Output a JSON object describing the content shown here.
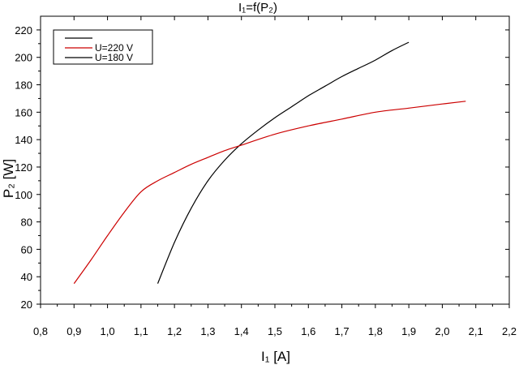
{
  "chart_data": {
    "type": "line",
    "title": "I₁=f(P₂)",
    "xlabel": "I₁ [A]",
    "ylabel": "P₂ [W]",
    "xlim": [
      0.8,
      2.2
    ],
    "ylim": [
      20,
      230
    ],
    "x_ticks": [
      0.8,
      0.9,
      1.0,
      1.1,
      1.2,
      1.3,
      1.4,
      1.5,
      1.6,
      1.7,
      1.8,
      1.9,
      2.0,
      2.1,
      2.2
    ],
    "x_tick_labels": [
      "0,8",
      "0,9",
      "1,0",
      "1,1",
      "1,2",
      "1,3",
      "1,4",
      "1,5",
      "1,6",
      "1,7",
      "1,8",
      "1,9",
      "2,0",
      "2,1",
      "2,2"
    ],
    "y_ticks": [
      20,
      40,
      60,
      80,
      100,
      120,
      140,
      160,
      180,
      200,
      220
    ],
    "y_tick_labels": [
      "20",
      "40",
      "60",
      "80",
      "100",
      "120",
      "140",
      "160",
      "180",
      "200",
      "220"
    ],
    "grid": false,
    "legend_position": "top-left",
    "series": [
      {
        "name": "",
        "color": "#000000",
        "x": [
          1.15,
          1.2,
          1.25,
          1.3,
          1.35,
          1.4,
          1.45,
          1.5,
          1.55,
          1.6,
          1.65,
          1.7,
          1.75,
          1.8,
          1.85,
          1.9
        ],
        "y": [
          35,
          65,
          90,
          110,
          125,
          137,
          147,
          156,
          164,
          172,
          179,
          186,
          192,
          198,
          205,
          211
        ]
      },
      {
        "name": "U=220 V",
        "color": "#cc0000",
        "x": [
          0.9,
          0.95,
          1.0,
          1.05,
          1.1,
          1.15,
          1.2,
          1.25,
          1.3,
          1.35,
          1.4,
          1.5,
          1.6,
          1.7,
          1.8,
          1.9,
          2.0,
          2.07
        ],
        "y": [
          35,
          52,
          70,
          87,
          102,
          110,
          116,
          122,
          127,
          132,
          136,
          144,
          150,
          155,
          160,
          163,
          166,
          168
        ]
      }
    ],
    "legend_entries": [
      {
        "label": "",
        "color": "#000000"
      },
      {
        "label": "U=220 V",
        "color": "#cc0000"
      },
      {
        "label": "U=180 V",
        "color": "#000000"
      }
    ]
  }
}
